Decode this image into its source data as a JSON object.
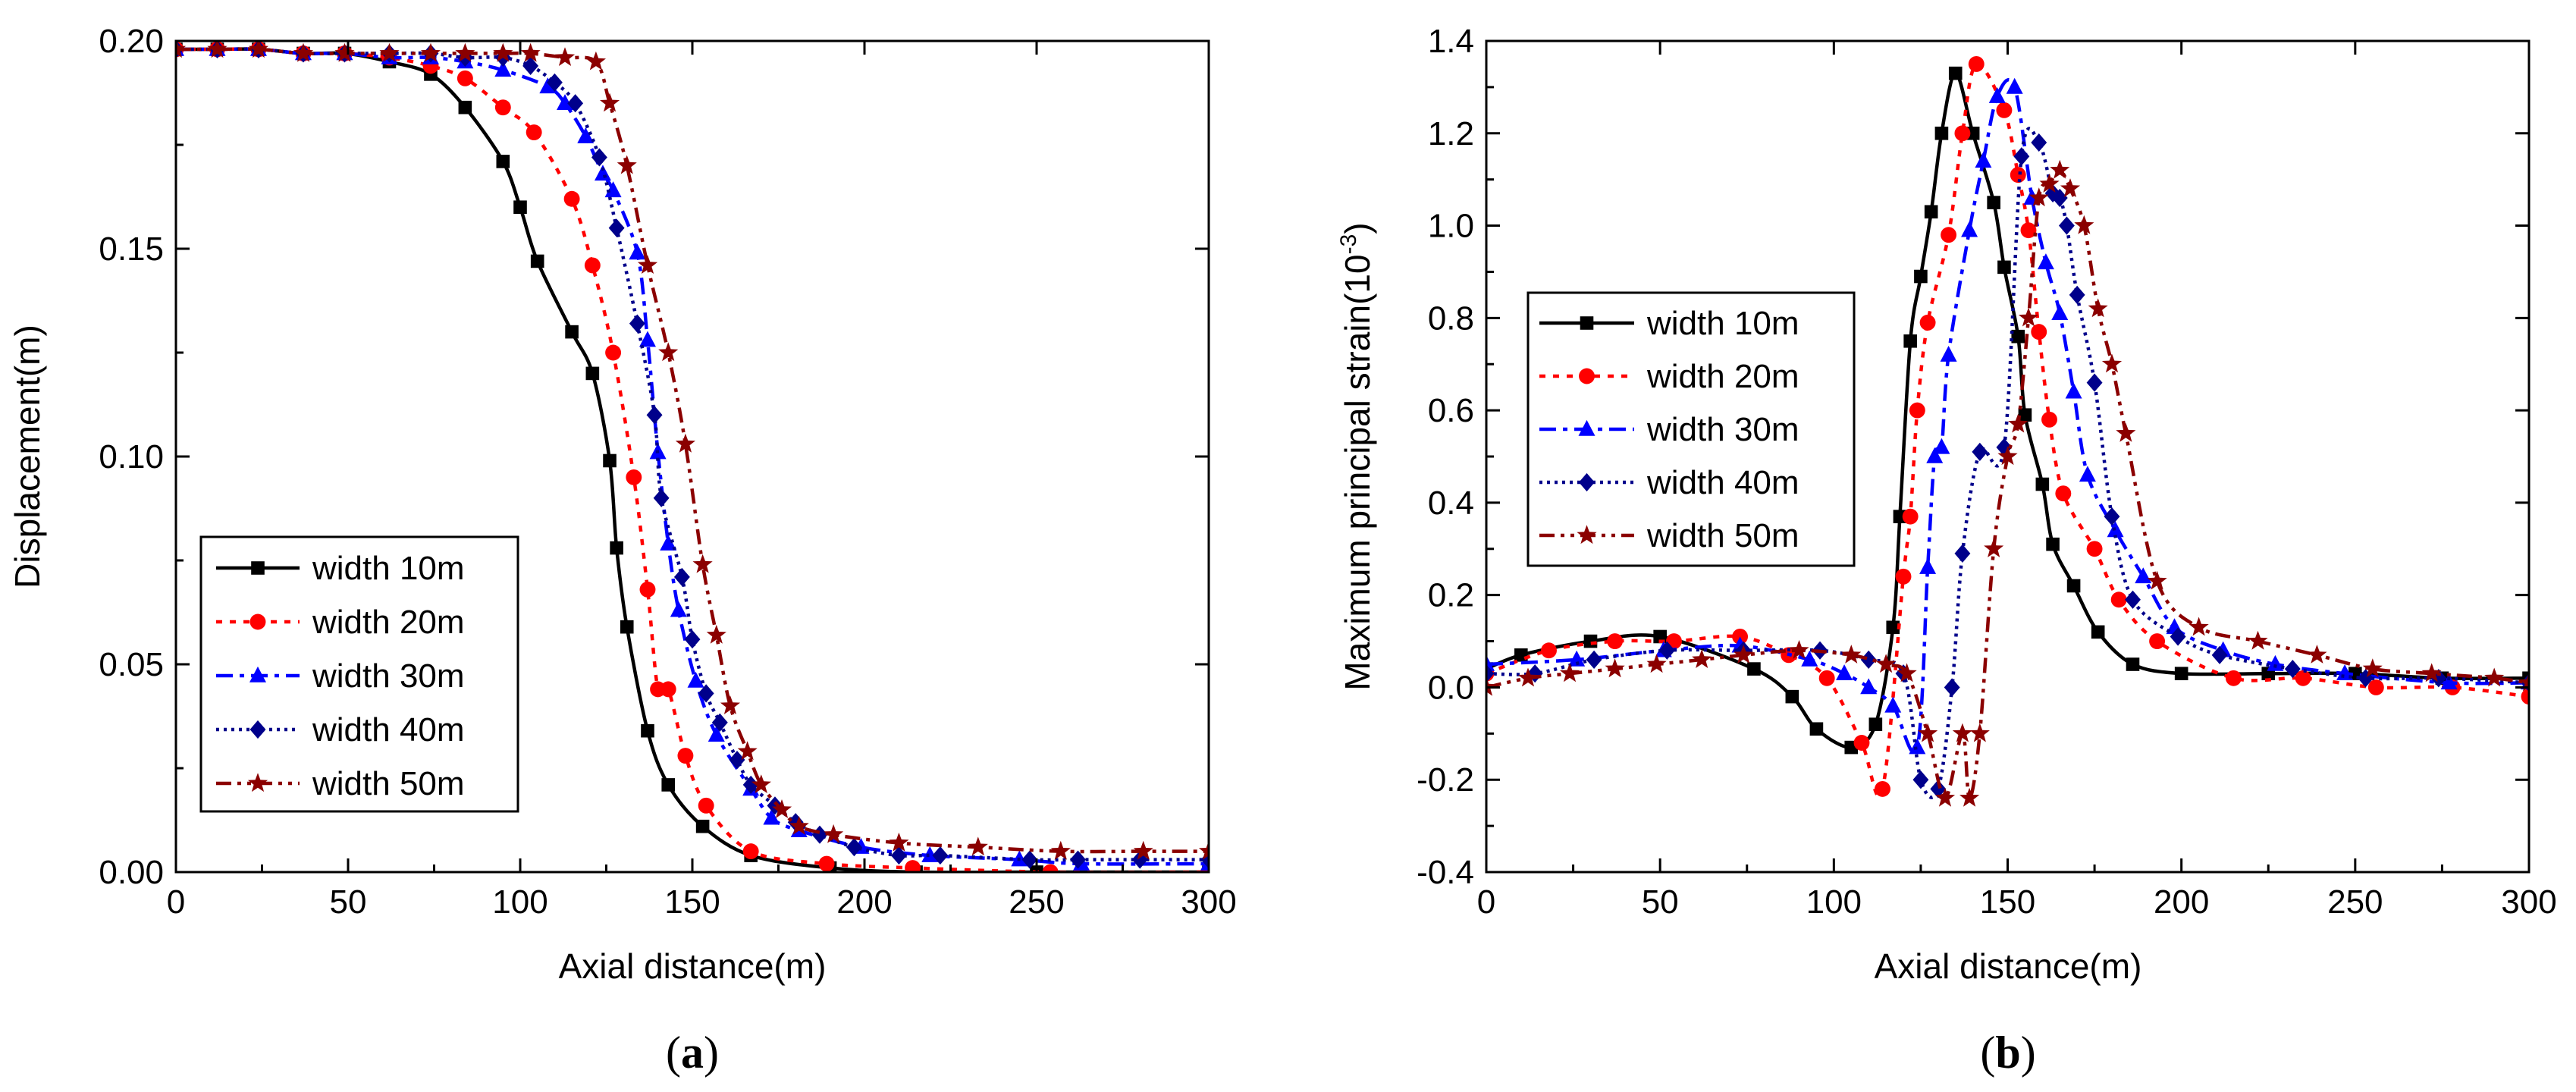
{
  "chart_data": [
    {
      "type": "line",
      "panel_label": {
        "open": "(",
        "letter": "a",
        "close": ")"
      },
      "xlabel": "Axial distance(m)",
      "ylabel": "Displacement(m)",
      "xlim": [
        0,
        300
      ],
      "ylim": [
        0,
        0.2
      ],
      "xticks": [
        0,
        50,
        100,
        150,
        200,
        250,
        300
      ],
      "xtick_labels": [
        "0",
        "50",
        "100",
        "150",
        "200",
        "250",
        "300"
      ],
      "yticks": [
        0,
        0.05,
        0.1,
        0.15,
        0.2
      ],
      "ytick_labels": [
        "0.00",
        "0.05",
        "0.10",
        "0.15",
        "0.20"
      ],
      "grid": false,
      "legend_position": "lower-left",
      "series": [
        {
          "name": "width 10m",
          "color": "#000000",
          "dash": "solid",
          "marker": "square",
          "x": [
            0,
            12,
            24,
            37,
            49,
            62,
            74,
            84,
            95,
            100,
            105,
            115,
            121,
            126,
            128,
            131,
            137,
            143,
            153,
            167,
            190,
            215,
            250,
            300
          ],
          "y": [
            0.198,
            0.198,
            0.198,
            0.197,
            0.197,
            0.195,
            0.192,
            0.184,
            0.171,
            0.16,
            0.147,
            0.13,
            0.12,
            0.099,
            0.078,
            0.059,
            0.034,
            0.021,
            0.011,
            0.004,
            0.001,
            0.0,
            0.0,
            0.0
          ]
        },
        {
          "name": "width 20m",
          "color": "#ff0000",
          "dash": "dot",
          "marker": "circle",
          "x": [
            0,
            12,
            24,
            37,
            49,
            62,
            74,
            84,
            95,
            104,
            115,
            121,
            127,
            133,
            137,
            140,
            143,
            148,
            154,
            167,
            189,
            214,
            254,
            300
          ],
          "y": [
            0.198,
            0.198,
            0.198,
            0.197,
            0.197,
            0.196,
            0.194,
            0.191,
            0.184,
            0.178,
            0.162,
            0.146,
            0.125,
            0.095,
            0.068,
            0.044,
            0.044,
            0.028,
            0.016,
            0.005,
            0.002,
            0.001,
            0.0,
            0.0
          ]
        },
        {
          "name": "width 30m",
          "color": "#0000ff",
          "dash": "dashdot",
          "marker": "triangle",
          "x": [
            0,
            12,
            24,
            37,
            49,
            62,
            74,
            84,
            95,
            108,
            113,
            119,
            124,
            127,
            134,
            137,
            140,
            143,
            146,
            151,
            157,
            167,
            173,
            181,
            199,
            219,
            245,
            263,
            300
          ],
          "y": [
            0.198,
            0.198,
            0.198,
            0.197,
            0.197,
            0.196,
            0.196,
            0.195,
            0.193,
            0.189,
            0.185,
            0.177,
            0.168,
            0.164,
            0.149,
            0.128,
            0.101,
            0.079,
            0.063,
            0.046,
            0.033,
            0.02,
            0.013,
            0.01,
            0.006,
            0.004,
            0.003,
            0.002,
            0.002
          ]
        },
        {
          "name": "width 40m",
          "color": "#00008b",
          "dash": "dotted",
          "marker": "diamond",
          "x": [
            0,
            12,
            24,
            37,
            49,
            62,
            74,
            84,
            95,
            103,
            110,
            116,
            123,
            128,
            134,
            139,
            141,
            147,
            150,
            154,
            158,
            163,
            167,
            174,
            180,
            187,
            197,
            210,
            222,
            248,
            262,
            280,
            300
          ],
          "y": [
            0.198,
            0.198,
            0.198,
            0.197,
            0.197,
            0.197,
            0.197,
            0.196,
            0.196,
            0.194,
            0.19,
            0.185,
            0.172,
            0.155,
            0.132,
            0.11,
            0.09,
            0.071,
            0.056,
            0.043,
            0.036,
            0.027,
            0.021,
            0.016,
            0.012,
            0.009,
            0.006,
            0.004,
            0.004,
            0.003,
            0.003,
            0.003,
            0.003
          ]
        },
        {
          "name": "width 50m",
          "color": "#8b0000",
          "dash": "dashdotdot",
          "marker": "star",
          "x": [
            0,
            12,
            24,
            37,
            49,
            62,
            74,
            84,
            95,
            103,
            113,
            122,
            126,
            131,
            137,
            143,
            148,
            153,
            157,
            161,
            166,
            170,
            176,
            181,
            191,
            210,
            233,
            257,
            281,
            300
          ],
          "y": [
            0.198,
            0.198,
            0.198,
            0.197,
            0.197,
            0.197,
            0.197,
            0.197,
            0.197,
            0.197,
            0.196,
            0.195,
            0.185,
            0.17,
            0.146,
            0.125,
            0.103,
            0.074,
            0.057,
            0.04,
            0.029,
            0.021,
            0.015,
            0.011,
            0.009,
            0.007,
            0.006,
            0.005,
            0.005,
            0.005
          ]
        }
      ]
    },
    {
      "type": "line",
      "panel_label": {
        "open": "(",
        "letter": "b",
        "close": ")"
      },
      "xlabel": "Axial distance(m)",
      "ylabel": {
        "base": "Maximum principal strain(10",
        "exponent": "-3",
        "close": ")"
      },
      "xlim": [
        0,
        300
      ],
      "ylim": [
        -0.4,
        1.4
      ],
      "xticks": [
        0,
        50,
        100,
        150,
        200,
        250,
        300
      ],
      "xtick_labels": [
        "0",
        "50",
        "100",
        "150",
        "200",
        "250",
        "300"
      ],
      "yticks": [
        -0.4,
        -0.2,
        0.0,
        0.2,
        0.4,
        0.6,
        0.8,
        1.0,
        1.2,
        1.4
      ],
      "ytick_labels": [
        "-0.4",
        "-0.2",
        "0.0",
        "0.2",
        "0.4",
        "0.6",
        "0.8",
        "1.0",
        "1.2",
        "1.4"
      ],
      "grid": false,
      "legend_position": "upper-left",
      "series": [
        {
          "name": "width 10m",
          "color": "#000000",
          "dash": "solid",
          "marker": "square",
          "x": [
            0,
            10,
            30,
            50,
            77,
            88,
            95,
            105,
            112,
            117,
            119,
            122,
            125,
            128,
            131,
            135,
            140,
            146,
            149,
            153,
            155,
            160,
            163,
            169,
            176,
            186,
            200,
            225,
            250,
            275,
            300
          ],
          "y": [
            0.04,
            0.07,
            0.1,
            0.11,
            0.04,
            -0.02,
            -0.09,
            -0.13,
            -0.08,
            0.13,
            0.37,
            0.75,
            0.89,
            1.03,
            1.2,
            1.33,
            1.2,
            1.05,
            0.91,
            0.76,
            0.59,
            0.44,
            0.31,
            0.22,
            0.12,
            0.05,
            0.03,
            0.03,
            0.03,
            0.02,
            0.02
          ]
        },
        {
          "name": "width 20m",
          "color": "#ff0000",
          "dash": "dot",
          "marker": "circle",
          "x": [
            0,
            18,
            37,
            54,
            73,
            87,
            98,
            108,
            114,
            120,
            122,
            124,
            127,
            133,
            137,
            141,
            149,
            153,
            156,
            159,
            162,
            166,
            175,
            182,
            193,
            215,
            235,
            256,
            278,
            300
          ],
          "y": [
            0.03,
            0.08,
            0.1,
            0.1,
            0.11,
            0.07,
            0.02,
            -0.12,
            -0.22,
            0.24,
            0.37,
            0.6,
            0.79,
            0.98,
            1.2,
            1.35,
            1.25,
            1.11,
            0.99,
            0.77,
            0.58,
            0.42,
            0.3,
            0.19,
            0.1,
            0.02,
            0.02,
            0.0,
            0.0,
            -0.02
          ]
        },
        {
          "name": "width 30m",
          "color": "#0000ff",
          "dash": "dashdot",
          "marker": "triangle",
          "x": [
            0,
            26,
            51,
            73,
            93,
            103,
            110,
            117,
            124,
            127,
            129,
            131,
            133,
            139,
            143,
            147,
            152,
            157,
            161,
            165,
            169,
            173,
            181,
            189,
            198,
            212,
            227,
            247,
            277,
            300
          ],
          "y": [
            0.05,
            0.06,
            0.08,
            0.09,
            0.06,
            0.03,
            0.0,
            -0.04,
            -0.13,
            0.26,
            0.5,
            0.52,
            0.72,
            0.99,
            1.14,
            1.28,
            1.3,
            1.06,
            0.92,
            0.81,
            0.64,
            0.46,
            0.34,
            0.24,
            0.13,
            0.08,
            0.05,
            0.03,
            0.01,
            0.01
          ]
        },
        {
          "name": "width 40m",
          "color": "#00008b",
          "dash": "dotted",
          "marker": "diamond",
          "x": [
            0,
            14,
            31,
            52,
            74,
            96,
            110,
            120,
            125,
            130,
            134,
            137,
            142,
            149,
            154,
            159,
            163,
            165,
            167,
            170,
            175,
            180,
            186,
            199,
            211,
            232,
            253,
            274,
            300
          ],
          "y": [
            0.03,
            0.03,
            0.06,
            0.08,
            0.08,
            0.08,
            0.06,
            0.03,
            -0.2,
            -0.22,
            0.0,
            0.29,
            0.51,
            0.52,
            1.15,
            1.18,
            1.07,
            1.06,
            1.0,
            0.85,
            0.66,
            0.37,
            0.19,
            0.11,
            0.07,
            0.04,
            0.02,
            0.02,
            0.01
          ]
        },
        {
          "name": "width 50m",
          "color": "#8b0000",
          "dash": "dashdotdot",
          "marker": "star",
          "x": [
            0,
            12,
            24,
            37,
            49,
            62,
            74,
            90,
            105,
            115,
            121,
            127,
            132,
            137,
            139,
            142,
            146,
            150,
            153,
            156,
            159,
            162,
            165,
            168,
            172,
            176,
            180,
            184,
            193,
            205,
            222,
            239,
            255,
            272,
            290,
            300
          ],
          "y": [
            0.0,
            0.02,
            0.03,
            0.04,
            0.05,
            0.06,
            0.07,
            0.08,
            0.07,
            0.05,
            0.03,
            -0.1,
            -0.24,
            -0.1,
            -0.24,
            -0.1,
            0.3,
            0.5,
            0.57,
            0.8,
            1.06,
            1.09,
            1.12,
            1.08,
            1.0,
            0.82,
            0.7,
            0.55,
            0.23,
            0.13,
            0.1,
            0.07,
            0.04,
            0.03,
            0.02,
            0.01
          ]
        }
      ]
    }
  ]
}
